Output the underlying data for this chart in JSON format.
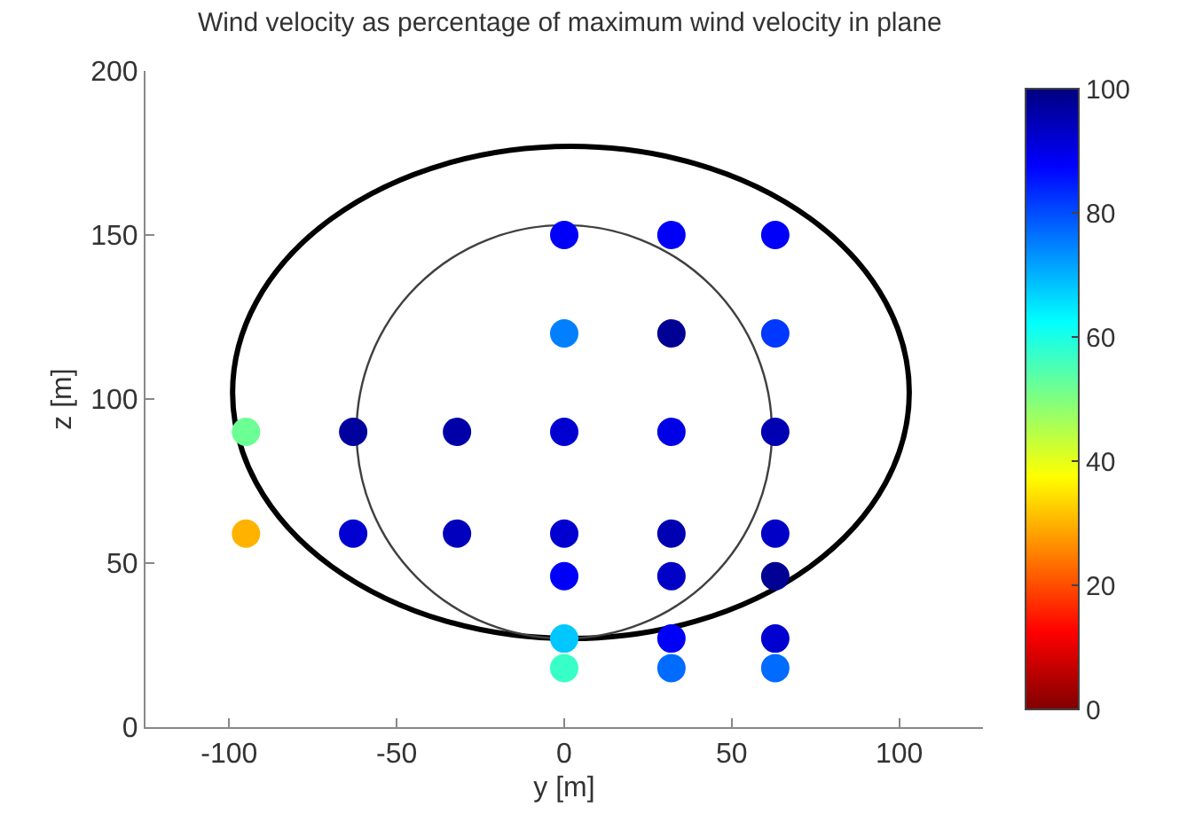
{
  "chart_data": {
    "type": "scatter",
    "title": "Wind velocity as percentage of maximum wind velocity in plane",
    "xlabel": "y [m]",
    "ylabel": "z [m]",
    "xlim": [
      -125,
      125
    ],
    "xticks": [
      -100,
      -50,
      0,
      50,
      100
    ],
    "ylim": [
      0,
      200
    ],
    "yticks": [
      0,
      50,
      100,
      150,
      200
    ],
    "grid": false,
    "clim": [
      0,
      100
    ],
    "cticks": [
      0,
      20,
      40,
      60,
      80,
      100
    ],
    "marker": "circle",
    "series": [
      {
        "x": [
          -95,
          -95,
          -63,
          -63,
          -32,
          -32,
          0,
          0,
          0,
          0,
          0,
          0,
          0,
          32,
          32,
          32,
          32,
          32,
          32,
          32,
          63,
          63,
          63,
          63,
          63,
          63,
          63
        ],
        "values": [
          90,
          59,
          90,
          59,
          90,
          59,
          150,
          120,
          90,
          59,
          46,
          27,
          18,
          150,
          120,
          90,
          59,
          46,
          27,
          18,
          150,
          120,
          90,
          59,
          46,
          27,
          18
        ],
        "cvalues": [
          52,
          30,
          97,
          92,
          96,
          94,
          88,
          75,
          92,
          92,
          88,
          68,
          57,
          88,
          98,
          90,
          95,
          93,
          88,
          77,
          88,
          82,
          95,
          93,
          98,
          92,
          77
        ]
      }
    ]
  }
}
